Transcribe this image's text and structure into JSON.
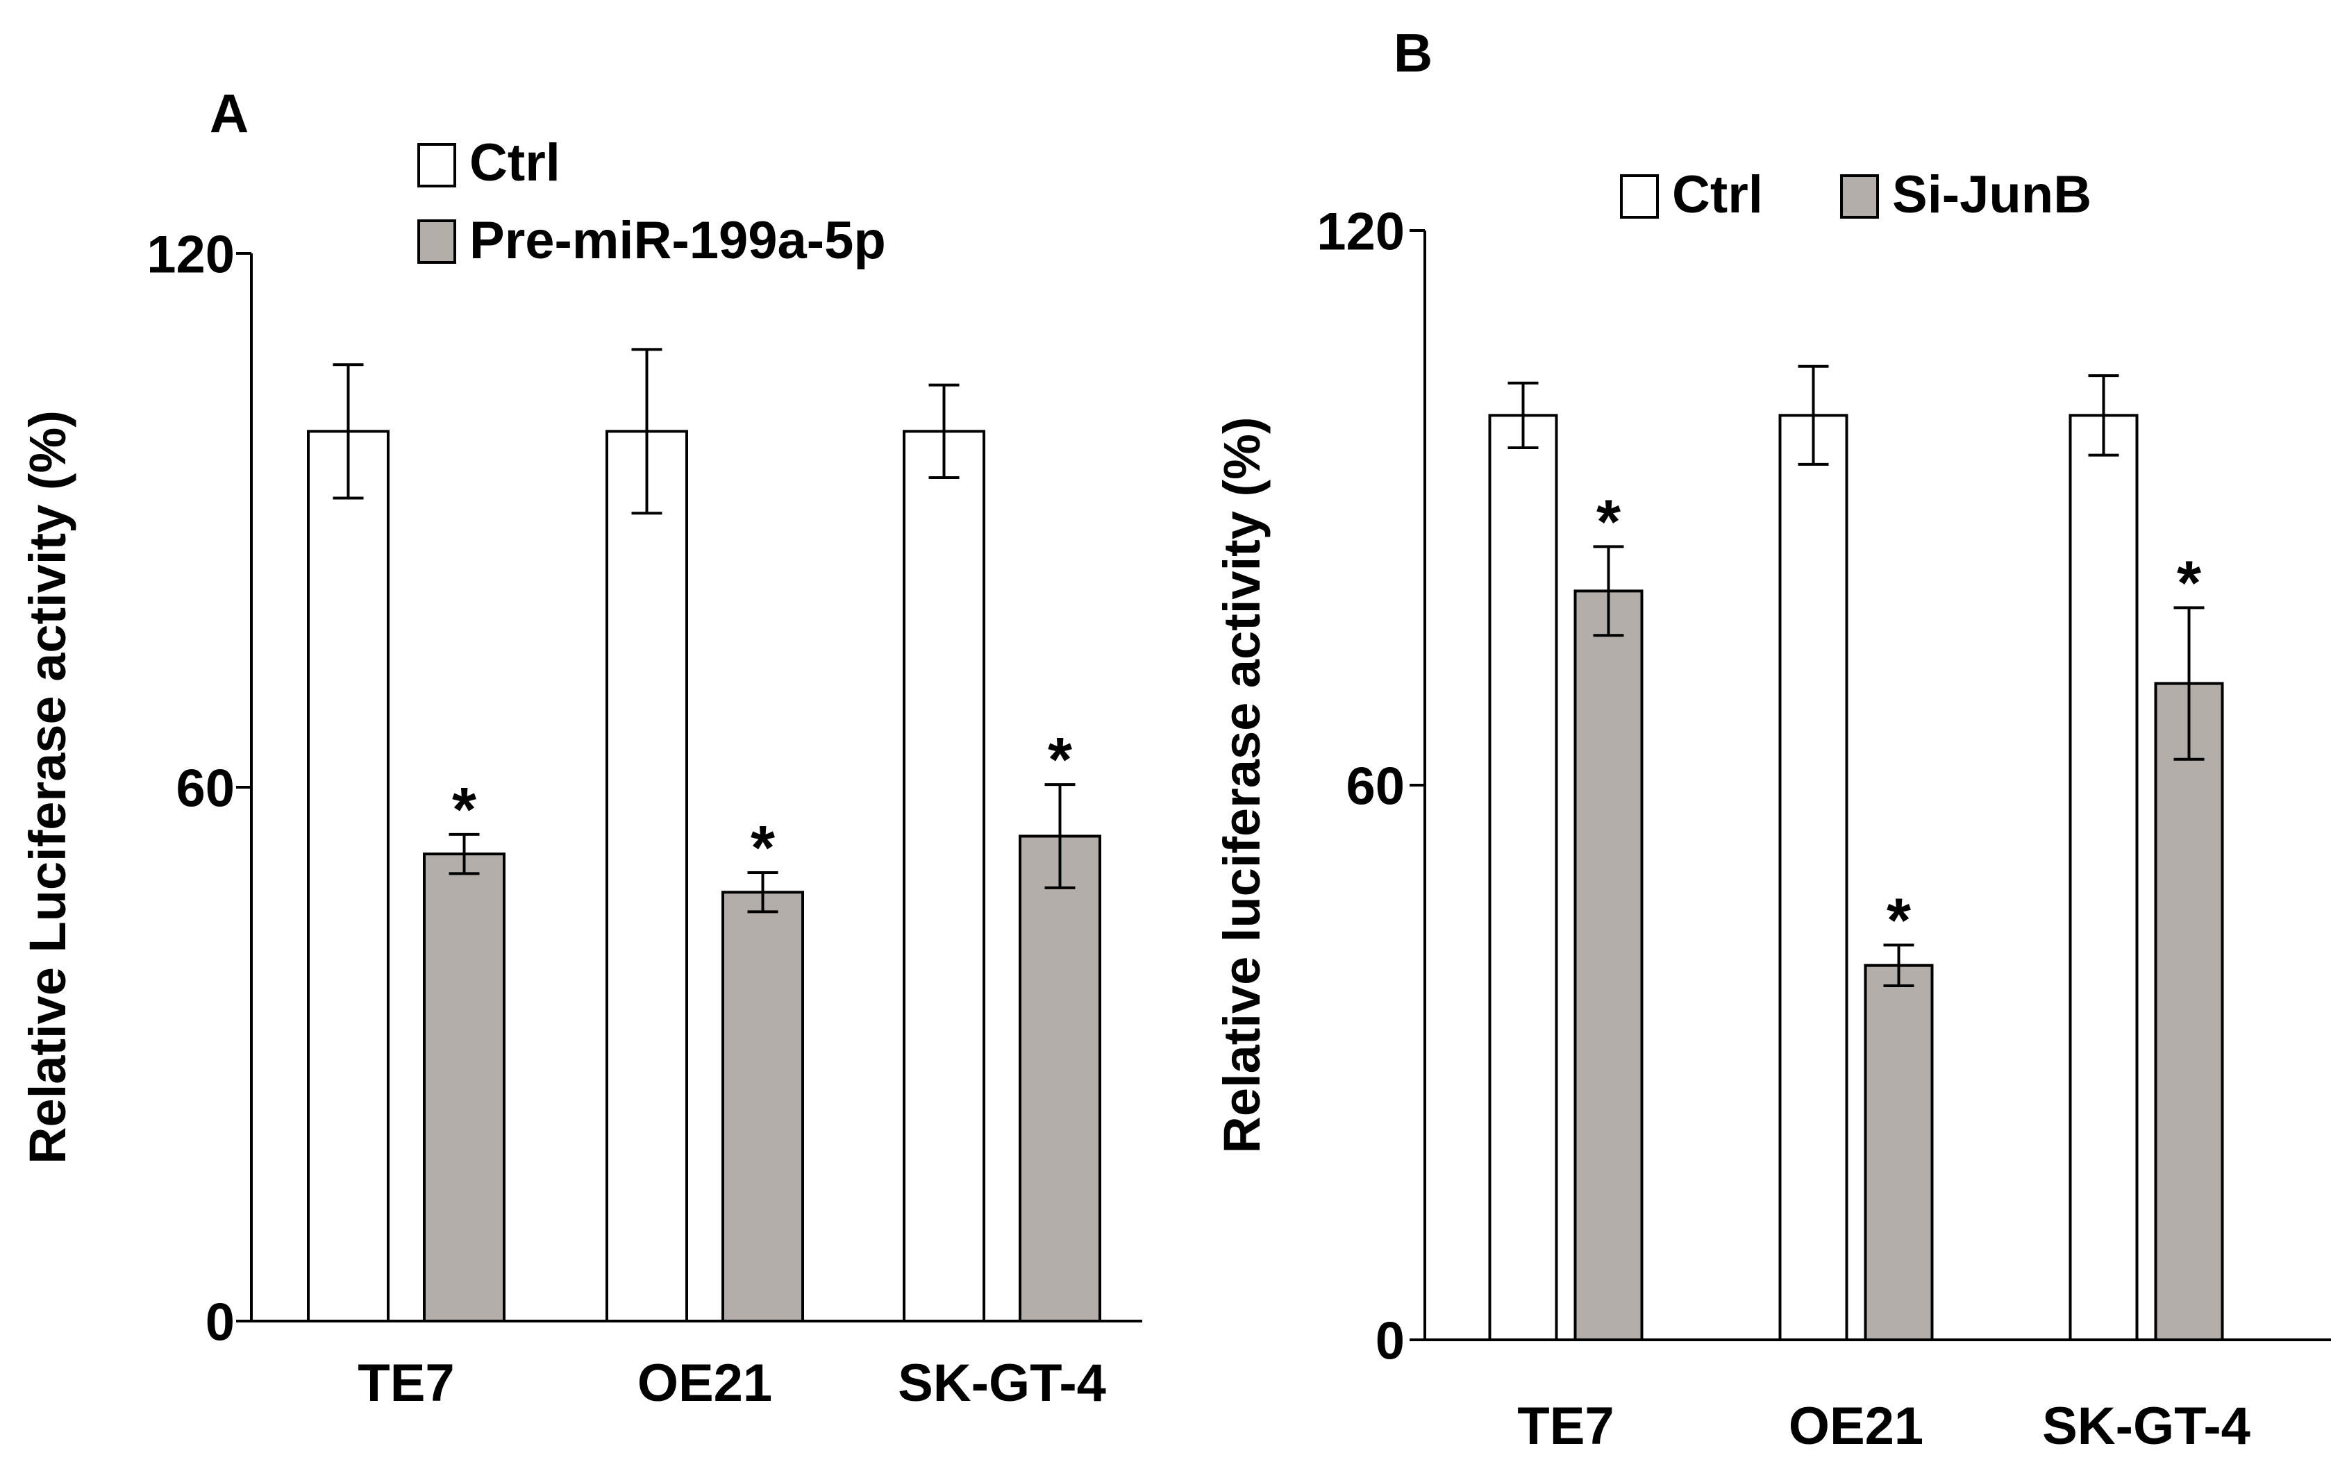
{
  "chart_data": [
    {
      "panel_label": "A",
      "type": "bar",
      "categories": [
        "TE7",
        "OE21",
        "SK-GT-4"
      ],
      "ylabel": "Relative Luciferase activity (%)",
      "ylim": [
        0,
        120
      ],
      "yticks": [
        0,
        60,
        120
      ],
      "grid": false,
      "legend_position": "top",
      "series": [
        {
          "name": "Ctrl",
          "color": "#ffffff",
          "values": [
            100,
            100,
            100
          ],
          "errors": [
            7.5,
            9.2,
            5.2
          ]
        },
        {
          "name": "Pre-miR-199a-5p",
          "color": "#b3aeaa",
          "values": [
            52.5,
            48.2,
            54.5
          ],
          "errors": [
            2.2,
            2.2,
            5.8
          ]
        }
      ],
      "annotations": [
        {
          "series": 1,
          "category": 0,
          "text": "*"
        },
        {
          "series": 1,
          "category": 1,
          "text": "*"
        },
        {
          "series": 1,
          "category": 2,
          "text": "*"
        }
      ]
    },
    {
      "panel_label": "B",
      "type": "bar",
      "categories": [
        "TE7",
        "OE21",
        "SK-GT-4"
      ],
      "ylabel": "Relative luciferase activity (%)",
      "ylim": [
        0,
        120
      ],
      "yticks": [
        0,
        60,
        120
      ],
      "grid": false,
      "legend_position": "top",
      "series": [
        {
          "name": "Ctrl",
          "color": "#ffffff",
          "values": [
            100,
            100,
            100
          ],
          "errors": [
            3.5,
            5.3,
            4.3
          ]
        },
        {
          "name": "Si-JunB",
          "color": "#b3aeaa",
          "values": [
            81,
            40.5,
            71
          ],
          "errors": [
            4.8,
            2.2,
            8.2
          ]
        }
      ],
      "annotations": [
        {
          "series": 1,
          "category": 0,
          "text": "*"
        },
        {
          "series": 1,
          "category": 1,
          "text": "*"
        },
        {
          "series": 1,
          "category": 2,
          "text": "*"
        }
      ]
    }
  ]
}
